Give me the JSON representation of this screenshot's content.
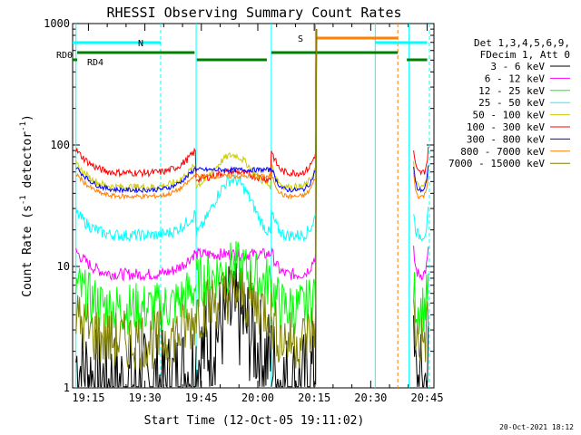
{
  "chart_data": {
    "type": "line",
    "title": "RHESSI Observing Summary Count Rates",
    "xlabel": "Start Time (12-Oct-05 19:11:02)",
    "ylabel_main": "Count Rate (s",
    "ylabel_sup1": "-1",
    "ylabel_mid": " detector",
    "ylabel_sup2": "-1",
    "ylabel_end": ")",
    "yscale": "log",
    "ylim": [
      1,
      1000
    ],
    "xlim_minutes": [
      19.18,
      20.78
    ],
    "x_ticks": [
      "19:15",
      "19:30",
      "19:45",
      "20:00",
      "20:15",
      "20:30",
      "20:45"
    ],
    "y_ticks": [
      "1",
      "10",
      "100",
      "1000"
    ],
    "legend_header": [
      "Det 1,3,4,5,6,9,",
      "FDecim 1, Att 0"
    ],
    "series": [
      {
        "name": "3 - 6 keV",
        "color": "#000000",
        "base": 1.3,
        "noise": 0.45
      },
      {
        "name": "6 - 12 keV",
        "color": "#ff00ff",
        "base": 10.5,
        "noise": 0.05
      },
      {
        "name": "12 - 25 keV",
        "color": "#00ff00",
        "base": 5.5,
        "noise": 0.22
      },
      {
        "name": "25 - 50 keV",
        "color": "#00ffff",
        "base": 22,
        "noise": 0.05
      },
      {
        "name": "50 - 100 keV",
        "color": "#cccc00",
        "base": 55,
        "noise": 0.03
      },
      {
        "name": "100 - 300 keV",
        "color": "#ff0000",
        "base": 72,
        "noise": 0.03
      },
      {
        "name": "300 - 800 keV",
        "color": "#0000ff",
        "base": 52,
        "noise": 0.02
      },
      {
        "name": "800 - 7000 keV",
        "color": "#ff8000",
        "base": 46,
        "noise": 0.02
      },
      {
        "name": "7000 - 15000 keV",
        "color": "#808000",
        "base": 3.0,
        "noise": 0.25
      }
    ],
    "flags": [
      {
        "label": "N",
        "color": "#00ffff",
        "segments": [
          [
            19.18,
            19.57
          ],
          [
            20.52,
            20.75
          ]
        ]
      },
      {
        "label": "S",
        "color": "#ff8000",
        "segments": [
          [
            20.26,
            20.62
          ]
        ]
      },
      {
        "label": "RD0",
        "color": "#008000",
        "segments": [
          [
            19.18,
            19.2
          ],
          [
            19.2,
            19.72
          ],
          [
            20.06,
            20.62
          ],
          [
            20.66,
            20.75
          ]
        ]
      },
      {
        "label": "RD4",
        "color": "#008000",
        "segments": [
          [
            19.73,
            20.04
          ]
        ]
      }
    ],
    "timestamp": "20-Oct-2021 18:12"
  }
}
